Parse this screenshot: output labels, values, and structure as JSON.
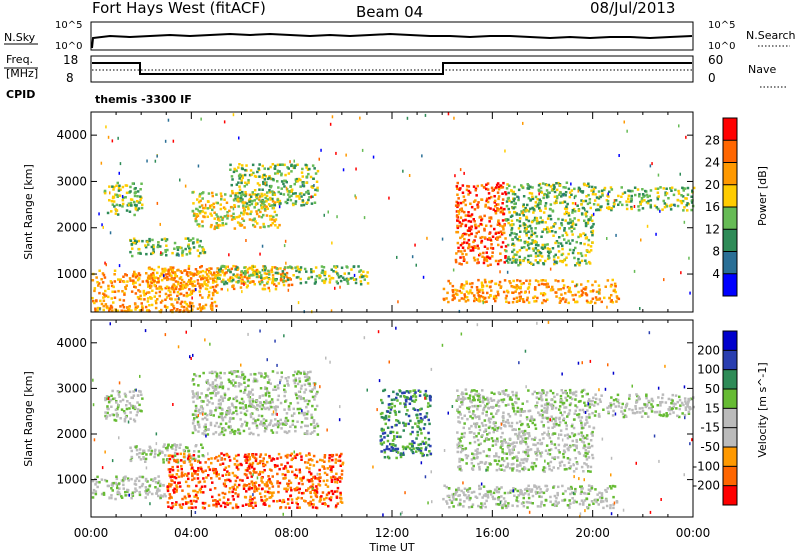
{
  "header": {
    "station": "Fort Hays West (fitACF)",
    "beam": "Beam 04",
    "date": "08/Jul/2013"
  },
  "noise_panel": {
    "left_label": "N.Sky",
    "right_label": "N.Search",
    "left_ticks": [
      "10^5",
      "10^0"
    ],
    "right_ticks": [
      "10^5",
      "10^0"
    ]
  },
  "freq_panel": {
    "left_label_line1": "Freq.",
    "left_label_line2": "[MHz]",
    "right_label": "Nave",
    "left_ticks": [
      "18",
      "8"
    ],
    "right_ticks": [
      "60",
      "0"
    ],
    "cpid_label": "CPID",
    "program": "themis -3300 IF"
  },
  "colors": {
    "power": [
      "#0000ff",
      "#2a6f96",
      "#2e8b57",
      "#66bb55",
      "#ffcc00",
      "#ff9900",
      "#ff6600",
      "#ff0000"
    ],
    "velocity": [
      "#ff0000",
      "#ff6600",
      "#ff9900",
      "#bbbbbb",
      "#bbbbbb",
      "#66bb33",
      "#2e8b57",
      "#2a3fb0",
      "#0000cc"
    ]
  },
  "chart_data": [
    {
      "type": "heatmap",
      "name": "power",
      "ylabel": "Slant Range [km]",
      "ylim": [
        180,
        4500
      ],
      "yticks": [
        "1000",
        "2000",
        "3000",
        "4000"
      ],
      "colorbar_label": "Power [dB]",
      "colorbar_ticks": [
        "4",
        "8",
        "12",
        "16",
        "20",
        "24",
        "28"
      ],
      "features": [
        {
          "t": [
            0.5,
            2.0
          ],
          "r": [
            2300,
            3000
          ],
          "level": 3
        },
        {
          "t": [
            1.5,
            4.5
          ],
          "r": [
            1400,
            1800
          ],
          "level": 3
        },
        {
          "t": [
            4.0,
            7.5
          ],
          "r": [
            2000,
            2800
          ],
          "level": 4
        },
        {
          "t": [
            5.5,
            9.0
          ],
          "r": [
            2500,
            3400
          ],
          "level": 3
        },
        {
          "t": [
            0.0,
            5.0
          ],
          "r": [
            200,
            1100
          ],
          "level": 5
        },
        {
          "t": [
            2.0,
            8.0
          ],
          "r": [
            700,
            1200
          ],
          "level": 5
        },
        {
          "t": [
            5.0,
            11.0
          ],
          "r": [
            800,
            1200
          ],
          "level": 3
        },
        {
          "t": [
            14.5,
            16.5
          ],
          "r": [
            1200,
            3000
          ],
          "level": 6
        },
        {
          "t": [
            16.5,
            20.0
          ],
          "r": [
            1200,
            3000
          ],
          "level": 3
        },
        {
          "t": [
            14.0,
            21.0
          ],
          "r": [
            400,
            900
          ],
          "level": 5
        },
        {
          "t": [
            20.0,
            24.0
          ],
          "r": [
            2400,
            2900
          ],
          "level": 3
        }
      ]
    },
    {
      "type": "heatmap",
      "name": "velocity",
      "ylabel": "Slant Range [km]",
      "ylim": [
        180,
        4500
      ],
      "yticks": [
        "1000",
        "2000",
        "3000",
        "4000"
      ],
      "colorbar_label": "Velocity [m s^-1]",
      "colorbar_ticks": [
        "200",
        "100",
        "50",
        "15",
        "-15",
        "-50",
        "-100",
        "-200"
      ],
      "xlabel": "Time UT",
      "xticks": [
        "00:00",
        "04:00",
        "08:00",
        "12:00",
        "16:00",
        "20:00",
        "00:00"
      ],
      "xlim": [
        0,
        24
      ],
      "features": [
        {
          "t": [
            0.5,
            2.0
          ],
          "r": [
            2300,
            3000
          ],
          "level": 4
        },
        {
          "t": [
            1.5,
            4.5
          ],
          "r": [
            1400,
            1800
          ],
          "level": 4
        },
        {
          "t": [
            4.0,
            9.0
          ],
          "r": [
            2000,
            3400
          ],
          "level": 4
        },
        {
          "t": [
            0.0,
            3.0
          ],
          "r": [
            600,
            1100
          ],
          "level": 4
        },
        {
          "t": [
            3.0,
            10.0
          ],
          "r": [
            400,
            1600
          ],
          "level": 1
        },
        {
          "t": [
            11.5,
            13.5
          ],
          "r": [
            1500,
            3000
          ],
          "level": 6
        },
        {
          "t": [
            14.5,
            20.0
          ],
          "r": [
            1200,
            3000
          ],
          "level": 4
        },
        {
          "t": [
            14.0,
            21.0
          ],
          "r": [
            400,
            900
          ],
          "level": 4
        },
        {
          "t": [
            20.0,
            24.0
          ],
          "r": [
            2400,
            2900
          ],
          "level": 4
        }
      ]
    }
  ]
}
